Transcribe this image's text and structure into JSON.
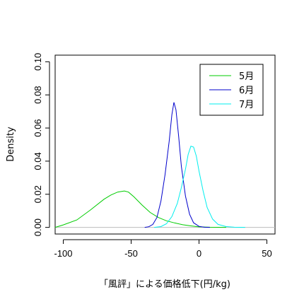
{
  "chart_data": {
    "type": "line",
    "title": "",
    "xlabel": "「風評」による価格低下(円/kg)",
    "ylabel": "Density",
    "xlim": [
      -106,
      56
    ],
    "ylim": [
      -0.004,
      0.104
    ],
    "x_ticks": [
      -100,
      -50,
      0,
      50
    ],
    "y_ticks": [
      0.0,
      0.02,
      0.04,
      0.06,
      0.08,
      0.1
    ],
    "x_tick_labels": [
      "-100",
      "-50",
      "0",
      "50"
    ],
    "y_tick_labels": [
      "0.00",
      "0.02",
      "0.04",
      "0.06",
      "0.08",
      "0.10"
    ],
    "zero_line": true,
    "legend_position": "top-right",
    "series": [
      {
        "name": "5月",
        "color": "#00cc00",
        "points": [
          [
            -106,
            0.0
          ],
          [
            -100,
            0.0015
          ],
          [
            -90,
            0.0045
          ],
          [
            -80,
            0.0105
          ],
          [
            -70,
            0.017
          ],
          [
            -65,
            0.0195
          ],
          [
            -60,
            0.0213
          ],
          [
            -55,
            0.022
          ],
          [
            -52,
            0.0213
          ],
          [
            -48,
            0.0185
          ],
          [
            -42,
            0.0135
          ],
          [
            -36,
            0.009
          ],
          [
            -30,
            0.006
          ],
          [
            -24,
            0.004
          ],
          [
            -18,
            0.0027
          ],
          [
            -12,
            0.0016
          ],
          [
            -6,
            0.0009
          ],
          [
            0,
            0.0003
          ],
          [
            8,
            0.0001
          ],
          [
            20,
            0.0
          ]
        ]
      },
      {
        "name": "6月",
        "color": "#0000cc",
        "points": [
          [
            -40,
            0.0
          ],
          [
            -37,
            0.0004
          ],
          [
            -34,
            0.0018
          ],
          [
            -31,
            0.006
          ],
          [
            -28,
            0.016
          ],
          [
            -25,
            0.032
          ],
          [
            -22,
            0.052
          ],
          [
            -20,
            0.068
          ],
          [
            -18.5,
            0.0755
          ],
          [
            -17,
            0.071
          ],
          [
            -15,
            0.055
          ],
          [
            -13,
            0.037
          ],
          [
            -10,
            0.019
          ],
          [
            -7,
            0.008
          ],
          [
            -4,
            0.0028
          ],
          [
            0,
            0.0006
          ],
          [
            4,
            0.0001
          ],
          [
            8,
            0.0
          ]
        ]
      },
      {
        "name": "7月",
        "color": "#00eeee",
        "points": [
          [
            -33,
            0.0
          ],
          [
            -28,
            0.0005
          ],
          [
            -24,
            0.0022
          ],
          [
            -20,
            0.0065
          ],
          [
            -16,
            0.0145
          ],
          [
            -13,
            0.024
          ],
          [
            -10,
            0.035
          ],
          [
            -8,
            0.044
          ],
          [
            -6,
            0.049
          ],
          [
            -4,
            0.0485
          ],
          [
            -2,
            0.043
          ],
          [
            0,
            0.034
          ],
          [
            3,
            0.022
          ],
          [
            6,
            0.012
          ],
          [
            10,
            0.005
          ],
          [
            14,
            0.0018
          ],
          [
            20,
            0.0005
          ],
          [
            26,
            0.0001
          ],
          [
            34,
            0.0
          ]
        ]
      }
    ]
  }
}
